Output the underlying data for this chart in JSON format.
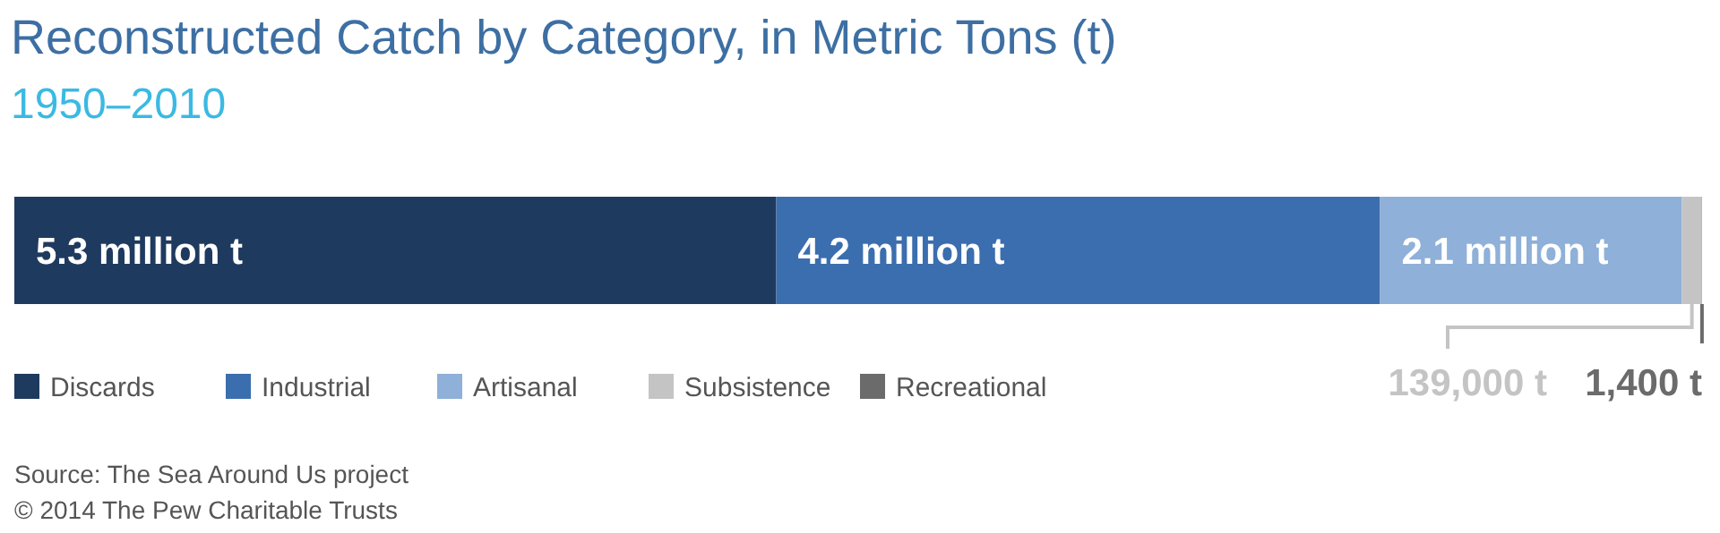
{
  "chart_data": {
    "type": "bar",
    "title": "Reconstructed Catch by Category, in Metric Tons (t)",
    "subtitle": "1950–2010",
    "orientation": "horizontal",
    "stacked": true,
    "categories": [
      null
    ],
    "legend": "bottom left",
    "series": [
      {
        "name": "Discards",
        "color": "#1f3a5f",
        "values": [
          5300000
        ],
        "value_labels": [
          "5.3 million t"
        ]
      },
      {
        "name": "Industrial",
        "color": "#3b6eae",
        "values": [
          4200000
        ],
        "value_labels": [
          "4.2 million t"
        ]
      },
      {
        "name": "Artisanal",
        "color": "#8fb0d8",
        "values": [
          2100000
        ],
        "value_labels": [
          "2.1 million t"
        ]
      },
      {
        "name": "Subsistence",
        "color": "#c4c4c4",
        "values": [
          139000
        ],
        "value_labels": [
          "139,000 t"
        ]
      },
      {
        "name": "Recreational",
        "color": "#6b6b6b",
        "values": [
          1400
        ],
        "value_labels": [
          "1,400 t"
        ]
      }
    ],
    "annotations": [
      "Source: The Sea Around Us project",
      "© 2014 The Pew Charitable Trusts"
    ]
  }
}
